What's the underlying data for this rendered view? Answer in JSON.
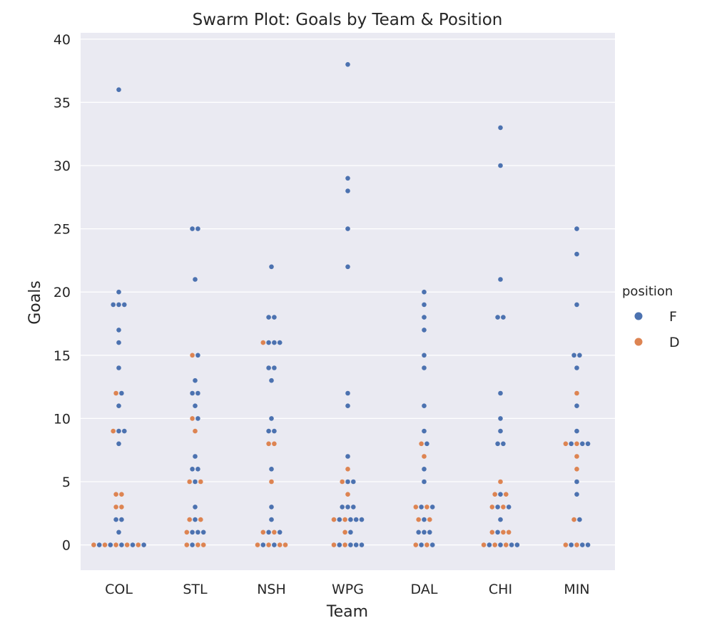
{
  "chart_data": {
    "type": "scatter",
    "subtype": "swarm",
    "title": "Swarm Plot: Goals by Team & Position",
    "xlabel": "Team",
    "ylabel": "Goals",
    "categories": [
      "COL",
      "STL",
      "NSH",
      "WPG",
      "DAL",
      "CHI",
      "MIN"
    ],
    "ylim": [
      -2,
      40.5
    ],
    "yticks": [
      0,
      5,
      10,
      15,
      20,
      25,
      30,
      35,
      40
    ],
    "grid": true,
    "background": "#eaeaf2",
    "legend": {
      "title": "position",
      "placement": "right",
      "entries": [
        {
          "label": "F",
          "color": "#4c72b0"
        },
        {
          "label": "D",
          "color": "#dd8452"
        }
      ]
    },
    "series": [
      {
        "name": "F",
        "color": "#4c72b0",
        "points": {
          "COL": [
            36,
            20,
            19,
            19,
            19,
            17,
            16,
            14,
            12,
            11,
            9,
            9,
            8,
            2,
            2,
            1,
            0,
            0,
            0,
            0,
            0
          ],
          "STL": [
            25,
            25,
            21,
            15,
            13,
            12,
            12,
            11,
            10,
            7,
            6,
            6,
            5,
            3,
            2,
            1,
            1,
            1,
            0
          ],
          "NSH": [
            22,
            18,
            18,
            16,
            16,
            16,
            14,
            14,
            13,
            10,
            9,
            9,
            6,
            3,
            2,
            1,
            1,
            0,
            0
          ],
          "WPG": [
            38,
            29,
            28,
            25,
            22,
            12,
            11,
            7,
            5,
            5,
            3,
            3,
            3,
            2,
            2,
            2,
            2,
            1,
            0,
            0,
            0,
            0
          ],
          "DAL": [
            20,
            19,
            18,
            17,
            15,
            14,
            11,
            9,
            8,
            6,
            5,
            3,
            3,
            2,
            1,
            1,
            1,
            0,
            0
          ],
          "CHI": [
            33,
            30,
            21,
            18,
            18,
            12,
            10,
            9,
            8,
            8,
            4,
            3,
            3,
            2,
            1,
            0,
            0,
            0,
            0
          ],
          "MIN": [
            25,
            23,
            19,
            15,
            15,
            14,
            11,
            9,
            8,
            8,
            8,
            5,
            4,
            2,
            0,
            0,
            0
          ]
        }
      },
      {
        "name": "D",
        "color": "#dd8452",
        "points": {
          "COL": [
            12,
            9,
            4,
            4,
            3,
            3,
            0,
            0,
            0,
            0,
            0
          ],
          "STL": [
            15,
            10,
            9,
            5,
            5,
            2,
            2,
            1,
            0,
            0,
            0
          ],
          "NSH": [
            16,
            8,
            8,
            5,
            1,
            1,
            0,
            0,
            0,
            0
          ],
          "WPG": [
            6,
            5,
            4,
            2,
            2,
            1,
            0,
            0
          ],
          "DAL": [
            8,
            7,
            3,
            3,
            2,
            2,
            0,
            0
          ],
          "CHI": [
            5,
            4,
            4,
            3,
            3,
            1,
            1,
            1,
            0,
            0,
            0
          ],
          "MIN": [
            12,
            8,
            8,
            7,
            6,
            2,
            0,
            0
          ]
        }
      }
    ]
  }
}
